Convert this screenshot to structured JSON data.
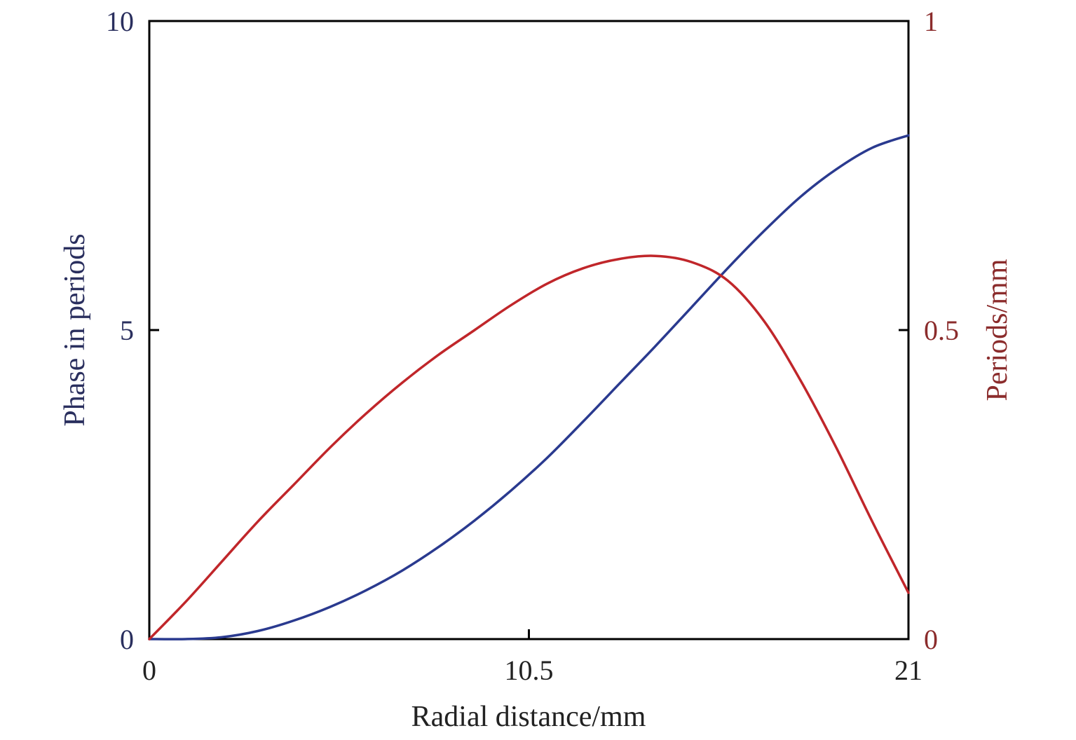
{
  "chart_data": {
    "type": "line",
    "xlabel": "Radial distance/mm",
    "ylabel_left": "Phase in periods",
    "ylabel_right": "Periods/mm",
    "xlim": [
      0,
      21
    ],
    "ylim_left": [
      0,
      10
    ],
    "ylim_right": [
      0,
      1
    ],
    "x_ticks": [
      "0",
      "10.5",
      "21"
    ],
    "y_ticks_left": [
      "0",
      "5",
      "10"
    ],
    "y_ticks_right": [
      "0",
      "0.5",
      "1"
    ],
    "grid": false,
    "colors": {
      "left_axis": "#2a2f5e",
      "right_axis": "#8b2c2c",
      "phase_line": "#2a3a8f",
      "frequency_line": "#c0262a",
      "frame": "#000000"
    },
    "series": [
      {
        "axis": "left",
        "x": [
          0,
          1,
          2,
          3,
          4,
          5,
          6,
          7,
          8,
          9,
          10,
          11,
          12,
          13,
          14,
          15,
          16,
          17,
          18,
          19,
          20,
          21
        ],
        "y": [
          0,
          0,
          0.03,
          0.13,
          0.3,
          0.52,
          0.79,
          1.11,
          1.49,
          1.92,
          2.4,
          2.93,
          3.52,
          4.13,
          4.74,
          5.37,
          6.0,
          6.6,
          7.15,
          7.6,
          7.95,
          8.15
        ]
      },
      {
        "axis": "right",
        "x": [
          0,
          1,
          2,
          3,
          4,
          5,
          6,
          7,
          8,
          9,
          10,
          11,
          12,
          13,
          14,
          15,
          16,
          17,
          18,
          19,
          20,
          21
        ],
        "y": [
          0,
          0.06,
          0.125,
          0.19,
          0.25,
          0.31,
          0.365,
          0.415,
          0.46,
          0.5,
          0.54,
          0.575,
          0.6,
          0.615,
          0.62,
          0.61,
          0.58,
          0.515,
          0.42,
          0.31,
          0.19,
          0.075
        ]
      }
    ]
  }
}
